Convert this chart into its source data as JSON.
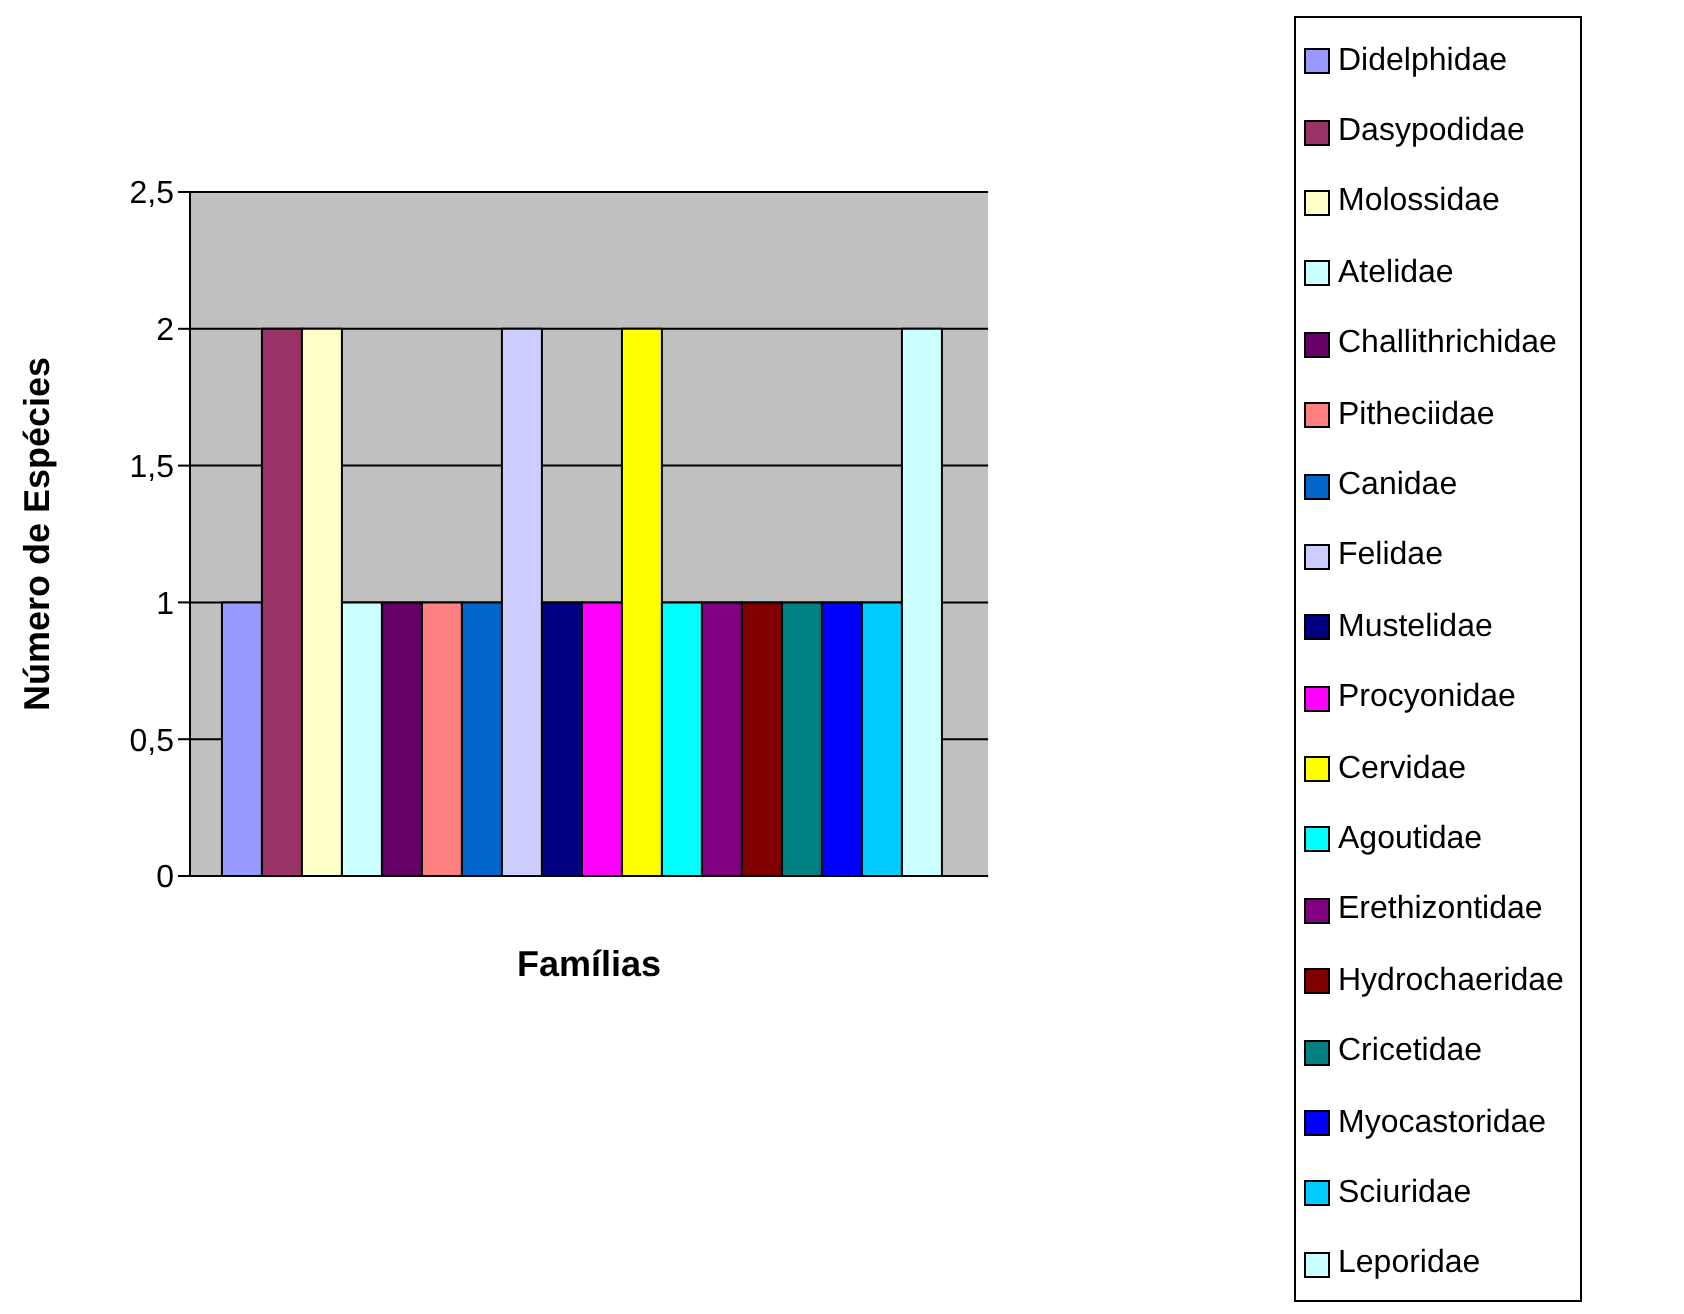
{
  "chart_data": {
    "type": "bar",
    "xlabel": "Famílias",
    "ylabel": "Número de Espécies",
    "categories": [
      null
    ],
    "series": [
      {
        "name": "Didelphidae",
        "color": "#9999ff",
        "values": [
          1
        ]
      },
      {
        "name": "Dasypodidae",
        "color": "#993366",
        "values": [
          2
        ]
      },
      {
        "name": "Molossidae",
        "color": "#ffffcc",
        "values": [
          2
        ]
      },
      {
        "name": "Atelidae",
        "color": "#ccffff",
        "values": [
          1
        ]
      },
      {
        "name": "Challithrichidae",
        "color": "#660066",
        "values": [
          1
        ]
      },
      {
        "name": "Pitheciidae",
        "color": "#ff8080",
        "values": [
          1
        ]
      },
      {
        "name": "Canidae",
        "color": "#0066cc",
        "values": [
          1
        ]
      },
      {
        "name": "Felidae",
        "color": "#ccccff",
        "values": [
          2
        ]
      },
      {
        "name": "Mustelidae",
        "color": "#000080",
        "values": [
          1
        ]
      },
      {
        "name": "Procyonidae",
        "color": "#ff00ff",
        "values": [
          1
        ]
      },
      {
        "name": "Cervidae",
        "color": "#ffff00",
        "values": [
          2
        ]
      },
      {
        "name": "Agoutidae",
        "color": "#00ffff",
        "values": [
          1
        ]
      },
      {
        "name": "Erethizontidae",
        "color": "#800080",
        "values": [
          1
        ]
      },
      {
        "name": "Hydrochaeridae",
        "color": "#800000",
        "values": [
          1
        ]
      },
      {
        "name": "Cricetidae",
        "color": "#008080",
        "values": [
          1
        ]
      },
      {
        "name": "Myocastoridae",
        "color": "#0000ff",
        "values": [
          1
        ]
      },
      {
        "name": "Sciuridae",
        "color": "#00ccff",
        "values": [
          1
        ]
      },
      {
        "name": "Leporidae",
        "color": "#ccffff",
        "values": [
          2
        ]
      }
    ],
    "ylim": [
      0,
      2.5
    ],
    "yticks": [
      0,
      {
        "value": 0.5,
        "label": "0,5"
      },
      1,
      {
        "value": 1.5,
        "label": "1,5"
      },
      2,
      {
        "value": 2.5,
        "label": "2,5"
      }
    ],
    "grid": "y",
    "legend": "right"
  }
}
